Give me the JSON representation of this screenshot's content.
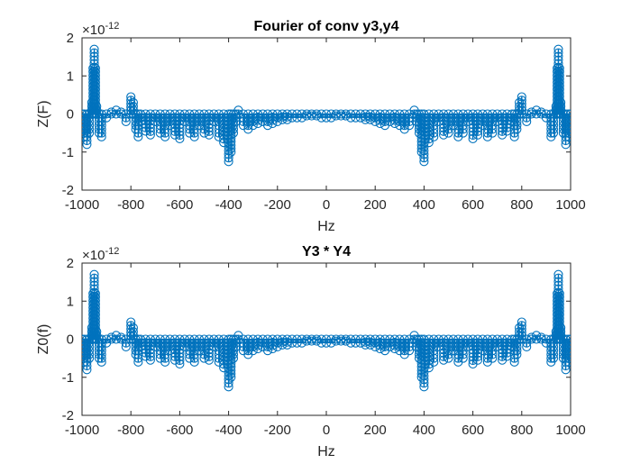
{
  "chart_data": [
    {
      "type": "line",
      "style": "stem-with-circle-markers",
      "title": "Fourier of conv y3,y4",
      "xlabel": "Hz",
      "ylabel": "Z(F)",
      "xlim": [
        -1000,
        1000
      ],
      "ylim": [
        -2,
        2
      ],
      "y_scale_base": "×10",
      "y_scale_exponent": "-12",
      "xticks": [
        "-1000",
        "-800",
        "-600",
        "-400",
        "-200",
        "0",
        "200",
        "400",
        "600",
        "800",
        "1000"
      ],
      "yticks": [
        "2",
        "1",
        "0",
        "-1",
        "-2"
      ],
      "grid": false,
      "color": "#0072BD",
      "series": [
        {
          "x": [
            -1000,
            -990,
            -980,
            -970,
            -960,
            -955,
            -950,
            -945,
            -940,
            -930,
            -920,
            -900,
            -880,
            -860,
            -840,
            -820,
            -800,
            -790,
            -780,
            -770,
            -760,
            -740,
            -720,
            -700,
            -680,
            -660,
            -640,
            -620,
            -600,
            -580,
            -560,
            -540,
            -520,
            -500,
            -480,
            -460,
            -440,
            -420,
            -400,
            -390,
            -380,
            -370,
            -360,
            -340,
            -320,
            -300,
            -280,
            -260,
            -240,
            -220,
            -200,
            -180,
            -160,
            -140,
            -120,
            -100,
            -80,
            -60,
            -40,
            -20,
            0,
            20,
            40,
            60,
            80,
            100,
            120,
            140,
            160,
            180,
            200,
            220,
            240,
            260,
            280,
            300,
            320,
            340,
            360,
            370,
            380,
            390,
            400,
            420,
            440,
            460,
            480,
            500,
            520,
            540,
            560,
            580,
            600,
            620,
            640,
            660,
            680,
            700,
            720,
            740,
            760,
            770,
            780,
            790,
            800,
            820,
            840,
            860,
            880,
            900,
            920,
            930,
            940,
            945,
            950,
            955,
            960,
            970,
            980,
            990,
            1000
          ],
          "y": [
            0,
            -0.6,
            -0.8,
            -0.5,
            0.3,
            1.2,
            1.7,
            1.2,
            0.2,
            -0.5,
            -0.6,
            -0.1,
            0.05,
            0.1,
            0.05,
            -0.2,
            0.45,
            0.3,
            -0.4,
            -0.6,
            -0.2,
            -0.45,
            -0.55,
            -0.2,
            -0.5,
            -0.6,
            -0.3,
            -0.55,
            -0.65,
            -0.2,
            -0.5,
            -0.6,
            -0.3,
            -0.5,
            -0.55,
            -0.2,
            -0.6,
            -0.75,
            -1.25,
            -1.0,
            -0.5,
            -0.2,
            0.1,
            -0.3,
            -0.4,
            -0.3,
            -0.25,
            -0.2,
            -0.3,
            -0.25,
            -0.2,
            -0.15,
            -0.15,
            -0.1,
            -0.1,
            -0.1,
            -0.05,
            -0.05,
            -0.05,
            -0.1,
            -0.1,
            -0.1,
            -0.05,
            -0.05,
            -0.05,
            -0.1,
            -0.1,
            -0.1,
            -0.15,
            -0.15,
            -0.2,
            -0.25,
            -0.3,
            -0.2,
            -0.25,
            -0.3,
            -0.4,
            -0.3,
            0.1,
            -0.2,
            -0.5,
            -1.0,
            -1.25,
            -0.75,
            -0.6,
            -0.2,
            -0.55,
            -0.5,
            -0.3,
            -0.6,
            -0.5,
            -0.2,
            -0.65,
            -0.55,
            -0.3,
            -0.6,
            -0.5,
            -0.2,
            -0.55,
            -0.45,
            -0.2,
            -0.6,
            -0.4,
            0.3,
            0.45,
            -0.2,
            0.05,
            0.1,
            0.05,
            -0.1,
            -0.6,
            -0.5,
            0.2,
            1.2,
            1.7,
            1.2,
            0.3,
            -0.5,
            -0.8,
            -0.6,
            0
          ]
        }
      ]
    },
    {
      "type": "line",
      "style": "stem-with-circle-markers",
      "title": "Y3 * Y4",
      "xlabel": "Hz",
      "ylabel": "Z0(f)",
      "xlim": [
        -1000,
        1000
      ],
      "ylim": [
        -2,
        2
      ],
      "y_scale_base": "×10",
      "y_scale_exponent": "-12",
      "xticks": [
        "-1000",
        "-800",
        "-600",
        "-400",
        "-200",
        "0",
        "200",
        "400",
        "600",
        "800",
        "1000"
      ],
      "yticks": [
        "2",
        "1",
        "0",
        "-1",
        "-2"
      ],
      "grid": false,
      "color": "#0072BD",
      "series": [
        {
          "x": [
            -1000,
            -990,
            -980,
            -970,
            -960,
            -955,
            -950,
            -945,
            -940,
            -930,
            -920,
            -900,
            -880,
            -860,
            -840,
            -820,
            -800,
            -790,
            -780,
            -770,
            -760,
            -740,
            -720,
            -700,
            -680,
            -660,
            -640,
            -620,
            -600,
            -580,
            -560,
            -540,
            -520,
            -500,
            -480,
            -460,
            -440,
            -420,
            -400,
            -390,
            -380,
            -370,
            -360,
            -340,
            -320,
            -300,
            -280,
            -260,
            -240,
            -220,
            -200,
            -180,
            -160,
            -140,
            -120,
            -100,
            -80,
            -60,
            -40,
            -20,
            0,
            20,
            40,
            60,
            80,
            100,
            120,
            140,
            160,
            180,
            200,
            220,
            240,
            260,
            280,
            300,
            320,
            340,
            360,
            370,
            380,
            390,
            400,
            420,
            440,
            460,
            480,
            500,
            520,
            540,
            560,
            580,
            600,
            620,
            640,
            660,
            680,
            700,
            720,
            740,
            760,
            770,
            780,
            790,
            800,
            820,
            840,
            860,
            880,
            900,
            920,
            930,
            940,
            945,
            950,
            955,
            960,
            970,
            980,
            990,
            1000
          ],
          "y": [
            0,
            -0.6,
            -0.8,
            -0.5,
            0.3,
            1.2,
            1.7,
            1.2,
            0.2,
            -0.5,
            -0.6,
            -0.1,
            0.05,
            0.1,
            0.05,
            -0.2,
            0.45,
            0.3,
            -0.4,
            -0.6,
            -0.2,
            -0.45,
            -0.55,
            -0.2,
            -0.5,
            -0.6,
            -0.3,
            -0.55,
            -0.65,
            -0.2,
            -0.5,
            -0.6,
            -0.3,
            -0.5,
            -0.55,
            -0.2,
            -0.6,
            -0.75,
            -1.25,
            -1.0,
            -0.5,
            -0.2,
            0.1,
            -0.3,
            -0.4,
            -0.3,
            -0.25,
            -0.2,
            -0.3,
            -0.25,
            -0.2,
            -0.15,
            -0.15,
            -0.1,
            -0.1,
            -0.1,
            -0.05,
            -0.05,
            -0.05,
            -0.1,
            -0.1,
            -0.1,
            -0.05,
            -0.05,
            -0.05,
            -0.1,
            -0.1,
            -0.1,
            -0.15,
            -0.15,
            -0.2,
            -0.25,
            -0.3,
            -0.2,
            -0.25,
            -0.3,
            -0.4,
            -0.3,
            0.1,
            -0.2,
            -0.5,
            -1.0,
            -1.25,
            -0.75,
            -0.6,
            -0.2,
            -0.55,
            -0.5,
            -0.3,
            -0.6,
            -0.5,
            -0.2,
            -0.65,
            -0.55,
            -0.3,
            -0.6,
            -0.5,
            -0.2,
            -0.55,
            -0.45,
            -0.2,
            -0.6,
            -0.4,
            0.3,
            0.45,
            -0.2,
            0.05,
            0.1,
            0.05,
            -0.1,
            -0.6,
            -0.5,
            0.2,
            1.2,
            1.7,
            1.2,
            0.3,
            -0.5,
            -0.8,
            -0.6,
            0
          ]
        }
      ]
    }
  ]
}
